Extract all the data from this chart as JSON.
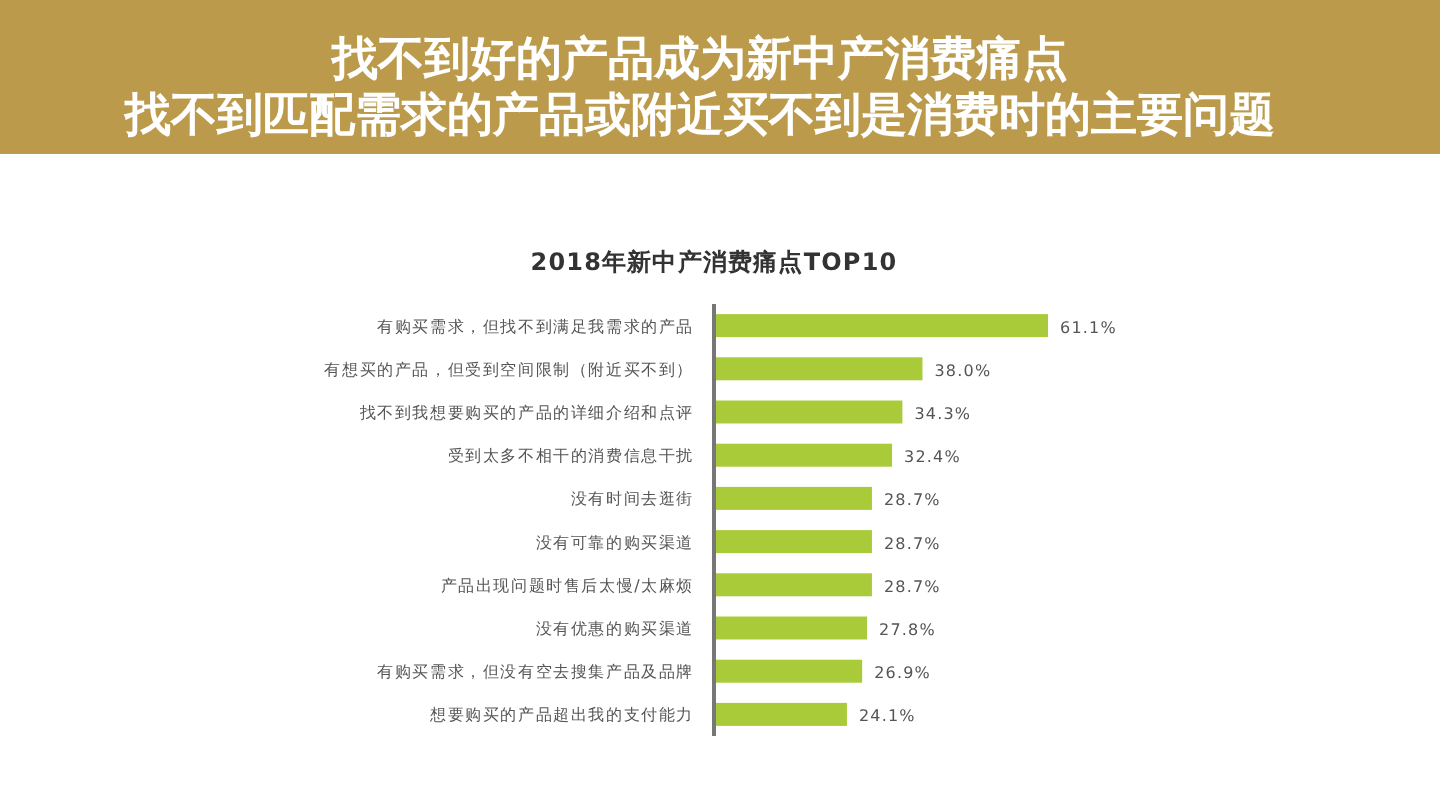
{
  "chart_data": {
    "type": "bar",
    "orientation": "horizontal",
    "title": "找不到好的产品成为新中产消费痛点",
    "subtitle": "找不到匹配需求的产品或附近买不到是消费时的主要问题",
    "annotations": [
      "2018年新中产消费痛点TOP10"
    ],
    "categories": [
      "有购买需求，但找不到满足我需求的产品",
      "有想买的产品，但受到空间限制（附近买不到）",
      "找不到我想要购买的产品的详细介绍和点评",
      "受到太多不相干的消费信息干扰",
      "没有时间去逛街",
      "没有可靠的购买渠道",
      "产品出现问题时售后太慢/太麻烦",
      "没有优惠的购买渠道",
      "有购买需求，但没有空去搜集产品及品牌",
      "想要购买的产品超出我的支付能力"
    ],
    "values": [
      61.1,
      38.0,
      34.3,
      32.4,
      28.7,
      28.7,
      28.7,
      27.8,
      26.9,
      24.1
    ],
    "value_labels": [
      "61.1%",
      "38.0%",
      "34.3%",
      "32.4%",
      "28.7%",
      "28.7%",
      "28.7%",
      "27.8%",
      "26.9%",
      "24.1%"
    ],
    "color": "#a9cb3a"
  }
}
